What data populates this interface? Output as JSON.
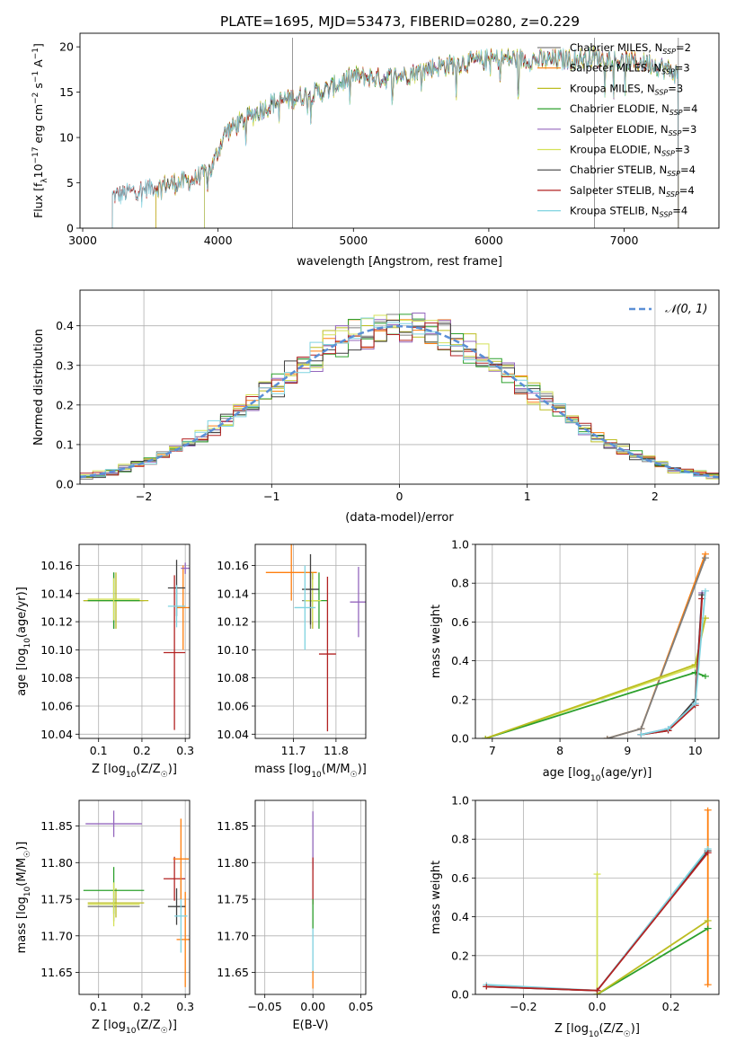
{
  "figure_title": "PLATE=1695, MJD=53473, FIBERID=0280, z=0.229",
  "colors": {
    "Chabrier MILES": "#7f7f7f",
    "Salpeter MILES": "#ff7f0e",
    "Kroupa MILES": "#bcbd22",
    "Chabrier ELODIE": "#2ca02c",
    "Salpeter ELODIE": "#9467bd",
    "Kroupa ELODIE": "#d4e157",
    "Chabrier STELIB": "#404040",
    "Salpeter STELIB": "#b22222",
    "Kroupa STELIB": "#7fd3e0",
    "normal_curve": "#5b8fd6"
  },
  "chart_data": [
    {
      "id": "spectrum",
      "type": "line",
      "title": "PLATE=1695, MJD=53473, FIBERID=0280, z=0.229",
      "xlabel": "wavelength [Angstrom, rest frame]",
      "ylabel_parts": [
        "Flux [f",
        "λ",
        "10",
        "−17",
        " erg cm",
        "−2",
        " s",
        "−1",
        " A",
        "−1",
        "]"
      ],
      "xlim": [
        2980,
        7700
      ],
      "ylim": [
        0,
        21.5
      ],
      "xticks": [
        3000,
        4000,
        5000,
        6000,
        7000
      ],
      "xtick_labels": [
        "3000",
        "4000",
        "5000",
        "6000",
        "7000"
      ],
      "yticks": [
        0,
        5,
        10,
        15,
        20
      ],
      "ytick_labels": [
        "0",
        "5",
        "10",
        "15",
        "20"
      ],
      "grid": false,
      "legend_position": "top-right",
      "legend": [
        {
          "label": "Chabrier MILES, N",
          "sub": "SSP",
          "tail": "=2"
        },
        {
          "label": "Salpeter MILES, N",
          "sub": "SSP",
          "tail": "=3"
        },
        {
          "label": "Kroupa MILES, N",
          "sub": "SSP",
          "tail": "=3"
        },
        {
          "label": "Chabrier ELODIE, N",
          "sub": "SSP",
          "tail": "=4"
        },
        {
          "label": "Salpeter ELODIE, N",
          "sub": "SSP",
          "tail": "=3"
        },
        {
          "label": "Kroupa ELODIE, N",
          "sub": "SSP",
          "tail": "=3"
        },
        {
          "label": "Chabrier STELIB, N",
          "sub": "SSP",
          "tail": "=4"
        },
        {
          "label": "Salpeter STELIB, N",
          "sub": "SSP",
          "tail": "=4"
        },
        {
          "label": "Kroupa STELIB, N",
          "sub": "SSP",
          "tail": "=4"
        }
      ],
      "continuum": {
        "x": [
          3220,
          3400,
          3600,
          3800,
          3950,
          4050,
          4200,
          4400,
          4600,
          4800,
          5000,
          5200,
          5400,
          5600,
          5800,
          6000,
          6200,
          6400,
          6600,
          6800,
          7000,
          7200,
          7400
        ],
        "y": [
          3.5,
          4.2,
          4.8,
          5.2,
          6.5,
          10.5,
          12.0,
          13.8,
          14.5,
          15.2,
          16.8,
          16.5,
          17.0,
          17.8,
          18.2,
          18.6,
          18.7,
          18.5,
          18.6,
          18.8,
          18.4,
          18.2,
          17.0
        ]
      },
      "series_start": {
        "Chabrier MILES": 3540,
        "Salpeter MILES": 3540,
        "Kroupa MILES": 3540,
        "Chabrier ELODIE": 3900,
        "Salpeter ELODIE": 3900,
        "Kroupa ELODIE": 3900,
        "Chabrier STELIB": 3220,
        "Salpeter STELIB": 3220,
        "Kroupa STELIB": 3220
      },
      "spikes_to_zero": [
        4550,
        6780,
        7400
      ]
    },
    {
      "id": "residuals",
      "type": "line",
      "xlabel": "(data-model)/error",
      "ylabel": "Normed distribution",
      "xlim": [
        -2.5,
        2.5
      ],
      "ylim": [
        0,
        0.49
      ],
      "xticks": [
        -2,
        -1,
        0,
        1,
        2
      ],
      "xtick_labels": [
        "−2",
        "−1",
        "0",
        "1",
        "2"
      ],
      "yticks": [
        0,
        0.1,
        0.2,
        0.3,
        0.4
      ],
      "ytick_labels": [
        "0.0",
        "0.1",
        "0.2",
        "0.3",
        "0.4"
      ],
      "grid": true,
      "legend_position": "top-right",
      "legend_label": "𝒩(0, 1)",
      "bin_width": 0.1,
      "series_count": 9
    },
    {
      "id": "age-vs-Z",
      "type": "scatter",
      "xlabel": "Z [log10(Z/Z☉)]",
      "xlabel_parts": [
        "Z [log",
        "10",
        "(Z/Z",
        "☉",
        ")]"
      ],
      "ylabel_parts": [
        "age  [log",
        "10",
        "(age/yr)]"
      ],
      "xlim": [
        0.055,
        0.31
      ],
      "ylim": [
        10.037,
        10.175
      ],
      "xticks": [
        0.1,
        0.2,
        0.3
      ],
      "xtick_labels": [
        "0.1",
        "0.2",
        "0.3"
      ],
      "yticks": [
        10.04,
        10.06,
        10.08,
        10.1,
        10.12,
        10.14,
        10.16
      ],
      "ytick_labels": [
        "10.04",
        "10.06",
        "10.08",
        "10.10",
        "10.12",
        "10.14",
        "10.16"
      ],
      "grid": true,
      "points": [
        {
          "name": "Chabrier MILES",
          "x": 0.135,
          "xerr": 0.07,
          "y": 10.135,
          "yerr": 0.02
        },
        {
          "name": "Salpeter MILES",
          "x": 0.295,
          "xerr": 0.015,
          "y": 10.13,
          "yerr": 0.03
        },
        {
          "name": "Kroupa MILES",
          "x": 0.14,
          "xerr": 0.075,
          "y": 10.135,
          "yerr": 0.02
        },
        {
          "name": "Chabrier ELODIE",
          "x": 0.135,
          "xerr": 0.06,
          "y": 10.135,
          "yerr": 0.02
        },
        {
          "name": "Salpeter ELODIE",
          "x": 0.3,
          "xerr": 0.01,
          "y": 10.158,
          "yerr": 0.004
        },
        {
          "name": "Kroupa ELODIE",
          "x": 0.135,
          "xerr": 0.06,
          "y": 10.136,
          "yerr": 0.015
        },
        {
          "name": "Chabrier STELIB",
          "x": 0.28,
          "xerr": 0.02,
          "y": 10.144,
          "yerr": 0.02
        },
        {
          "name": "Salpeter STELIB",
          "x": 0.275,
          "xerr": 0.025,
          "y": 10.098,
          "yerr": 0.055
        },
        {
          "name": "Kroupa STELIB",
          "x": 0.28,
          "xerr": 0.02,
          "y": 10.131,
          "yerr": 0.015
        }
      ]
    },
    {
      "id": "age-vs-mass",
      "type": "scatter",
      "xlabel_parts": [
        "mass [log",
        "10",
        "(M/M",
        "☉",
        ")]"
      ],
      "xlim": [
        11.61,
        11.87
      ],
      "ylim": [
        10.037,
        10.175
      ],
      "xticks": [
        11.7,
        11.8
      ],
      "xtick_labels": [
        "11.7",
        "11.8"
      ],
      "yticks": [
        10.04,
        10.06,
        10.08,
        10.1,
        10.12,
        10.14,
        10.16
      ],
      "ytick_labels": [
        "10.04",
        "10.06",
        "10.08",
        "10.10",
        "10.12",
        "10.14",
        "10.16"
      ],
      "grid": true,
      "points": [
        {
          "name": "Chabrier MILES",
          "x": 11.74,
          "xerr": 0.02,
          "y": 10.135,
          "yerr": 0.02
        },
        {
          "name": "Salpeter MILES",
          "x": 11.695,
          "xerr": 0.06,
          "y": 10.155,
          "yerr": 0.02
        },
        {
          "name": "Kroupa MILES",
          "x": 11.745,
          "xerr": 0.02,
          "y": 10.135,
          "yerr": 0.02
        },
        {
          "name": "Chabrier ELODIE",
          "x": 11.76,
          "xerr": 0.02,
          "y": 10.135,
          "yerr": 0.02
        },
        {
          "name": "Salpeter ELODIE",
          "x": 11.853,
          "xerr": 0.02,
          "y": 10.134,
          "yerr": 0.025
        },
        {
          "name": "Kroupa ELODIE",
          "x": 11.745,
          "xerr": 0.02,
          "y": 10.135,
          "yerr": 0.015
        },
        {
          "name": "Chabrier STELIB",
          "x": 11.74,
          "xerr": 0.02,
          "y": 10.143,
          "yerr": 0.025
        },
        {
          "name": "Salpeter STELIB",
          "x": 11.78,
          "xerr": 0.02,
          "y": 10.097,
          "yerr": 0.055
        },
        {
          "name": "Kroupa STELIB",
          "x": 11.727,
          "xerr": 0.025,
          "y": 10.13,
          "yerr": 0.03
        }
      ]
    },
    {
      "id": "weight-vs-age",
      "type": "line",
      "xlabel_parts": [
        "age  [log",
        "10",
        "(age/yr)]"
      ],
      "ylabel": "mass weight",
      "xlim": [
        6.75,
        10.35
      ],
      "ylim": [
        0,
        1
      ],
      "xticks": [
        7,
        8,
        9,
        10
      ],
      "xtick_labels": [
        "7",
        "8",
        "9",
        "10"
      ],
      "yticks": [
        0,
        0.2,
        0.4,
        0.6,
        0.8,
        1.0
      ],
      "ytick_labels": [
        "0.0",
        "0.2",
        "0.4",
        "0.6",
        "0.8",
        "1.0"
      ],
      "grid": true,
      "series": [
        {
          "name": "Salpeter MILES",
          "x": [
            8.7,
            9.2,
            10.15
          ],
          "y": [
            0.0,
            0.05,
            0.95
          ]
        },
        {
          "name": "Chabrier MILES",
          "x": [
            8.7,
            9.2,
            10.15
          ],
          "y": [
            0.0,
            0.05,
            0.93
          ]
        },
        {
          "name": "Kroupa ELODIE",
          "x": [
            6.9,
            10.0,
            10.15
          ],
          "y": [
            0.0,
            0.37,
            0.62
          ]
        },
        {
          "name": "Chabrier ELODIE",
          "x": [
            6.9,
            10.0,
            10.15
          ],
          "y": [
            0.0,
            0.34,
            0.32
          ]
        },
        {
          "name": "Kroupa MILES",
          "x": [
            6.9,
            10.0,
            10.15
          ],
          "y": [
            0.0,
            0.38,
            0.62
          ]
        },
        {
          "name": "Salpeter ELODIE",
          "x": [
            9.2,
            9.6,
            10.0,
            10.1
          ],
          "y": [
            0.02,
            0.05,
            0.18,
            0.75
          ]
        },
        {
          "name": "Chabrier STELIB",
          "x": [
            9.2,
            9.6,
            10.0,
            10.1
          ],
          "y": [
            0.02,
            0.04,
            0.2,
            0.74
          ]
        },
        {
          "name": "Salpeter STELIB",
          "x": [
            9.2,
            9.6,
            10.0,
            10.1
          ],
          "y": [
            0.02,
            0.04,
            0.17,
            0.72
          ]
        },
        {
          "name": "Kroupa STELIB",
          "x": [
            9.2,
            9.6,
            10.0,
            10.15
          ],
          "y": [
            0.02,
            0.05,
            0.18,
            0.76
          ]
        }
      ]
    },
    {
      "id": "mass-vs-Z",
      "type": "scatter",
      "xlabel_parts": [
        "Z [log",
        "10",
        "(Z/Z",
        "☉",
        ")]"
      ],
      "ylabel_parts": [
        "mass [log",
        "10",
        "(M/M",
        "☉",
        ")]"
      ],
      "xlim": [
        0.055,
        0.31
      ],
      "ylim": [
        11.62,
        11.885
      ],
      "xticks": [
        0.1,
        0.2,
        0.3
      ],
      "xtick_labels": [
        "0.1",
        "0.2",
        "0.3"
      ],
      "yticks": [
        11.65,
        11.7,
        11.75,
        11.8,
        11.85
      ],
      "ytick_labels": [
        "11.65",
        "11.70",
        "11.75",
        "11.80",
        "11.85"
      ],
      "grid": true,
      "points": [
        {
          "name": "Chabrier MILES",
          "x": 0.135,
          "xerr": 0.06,
          "y": 11.74,
          "yerr": 0.02
        },
        {
          "name": "Salpeter MILES",
          "x": 0.3,
          "xerr": 0.02,
          "y": 11.695,
          "yerr": 0.065
        },
        {
          "name": "Kroupa MILES",
          "x": 0.14,
          "xerr": 0.065,
          "y": 11.745,
          "yerr": 0.02
        },
        {
          "name": "Chabrier ELODIE",
          "x": 0.135,
          "xerr": 0.07,
          "y": 11.762,
          "yerr": 0.032
        },
        {
          "name": "Salpeter ELODIE",
          "x": 0.135,
          "xerr": 0.065,
          "y": 11.853,
          "yerr": 0.018
        },
        {
          "name": "Kroupa ELODIE",
          "x": 0.135,
          "xerr": 0.06,
          "y": 11.743,
          "yerr": 0.03
        },
        {
          "name": "Chabrier STELIB",
          "x": 0.28,
          "xerr": 0.02,
          "y": 11.74,
          "yerr": 0.025
        },
        {
          "name": "Salpeter STELIB",
          "x": 0.275,
          "xerr": 0.025,
          "y": 11.778,
          "yerr": 0.03
        },
        {
          "name": "Kroupa STELIB",
          "x": 0.29,
          "xerr": 0.015,
          "y": 11.727,
          "yerr": 0.05
        },
        {
          "name": "Salpeter MILES",
          "x": 0.29,
          "xerr": 0.018,
          "y": 11.805,
          "yerr": 0.055
        }
      ]
    },
    {
      "id": "mass-vs-ebv",
      "type": "scatter",
      "xlabel": "E(B-V)",
      "xlim": [
        -0.06,
        0.055
      ],
      "ylim": [
        11.62,
        11.885
      ],
      "xticks": [
        -0.05,
        0,
        0.05
      ],
      "xtick_labels": [
        "−0.05",
        "0.00",
        "0.05"
      ],
      "yticks": [
        11.65,
        11.7,
        11.75,
        11.8,
        11.85
      ],
      "ytick_labels": [
        "11.65",
        "11.70",
        "11.75",
        "11.80",
        "11.85"
      ],
      "grid": true,
      "points": [
        {
          "name": "Salpeter ELODIE",
          "x": 0,
          "xerr": 0,
          "y": 11.83,
          "yerr": 0.04
        },
        {
          "name": "Salpeter STELIB",
          "x": 0,
          "xerr": 0,
          "y": 11.775,
          "yerr": 0.032
        },
        {
          "name": "Chabrier ELODIE",
          "x": 0,
          "xerr": 0,
          "y": 11.73,
          "yerr": 0.02
        },
        {
          "name": "Kroupa STELIB",
          "x": 0,
          "xerr": 0,
          "y": 11.68,
          "yerr": 0.03
        },
        {
          "name": "Salpeter MILES",
          "x": 0,
          "xerr": 0,
          "y": 11.64,
          "yerr": 0.012
        }
      ]
    },
    {
      "id": "weight-vs-Z",
      "type": "line",
      "xlabel_parts": [
        "Z [log",
        "10",
        "(Z/Z",
        "☉",
        ")]"
      ],
      "ylabel": "mass weight",
      "xlim": [
        -0.33,
        0.33
      ],
      "ylim": [
        0,
        1
      ],
      "xticks": [
        -0.2,
        0,
        0.2
      ],
      "xtick_labels": [
        "−0.2",
        "0.0",
        "0.2"
      ],
      "yticks": [
        0,
        0.2,
        0.4,
        0.6,
        0.8,
        1.0
      ],
      "ytick_labels": [
        "0.0",
        "0.2",
        "0.4",
        "0.6",
        "0.8",
        "1.0"
      ],
      "grid": true,
      "series": [
        {
          "name": "Salpeter MILES",
          "x": [
            0.3,
            0.3
          ],
          "y": [
            0.05,
            0.95
          ]
        },
        {
          "name": "Kroupa ELODIE",
          "x": [
            0.0,
            0.0
          ],
          "y": [
            0.0,
            0.62
          ]
        },
        {
          "name": "Chabrier ELODIE",
          "x": [
            0.0,
            0.3
          ],
          "y": [
            0.0,
            0.34
          ]
        },
        {
          "name": "Kroupa MILES",
          "x": [
            0.0,
            0.3
          ],
          "y": [
            0.0,
            0.38
          ]
        },
        {
          "name": "Chabrier STELIB",
          "x": [
            -0.3,
            0.0,
            0.3
          ],
          "y": [
            0.04,
            0.02,
            0.74
          ]
        },
        {
          "name": "Kroupa STELIB",
          "x": [
            -0.3,
            0.0,
            0.3
          ],
          "y": [
            0.05,
            0.02,
            0.75
          ]
        },
        {
          "name": "Salpeter STELIB",
          "x": [
            -0.3,
            0.0,
            0.3
          ],
          "y": [
            0.04,
            0.02,
            0.73
          ]
        }
      ]
    }
  ]
}
